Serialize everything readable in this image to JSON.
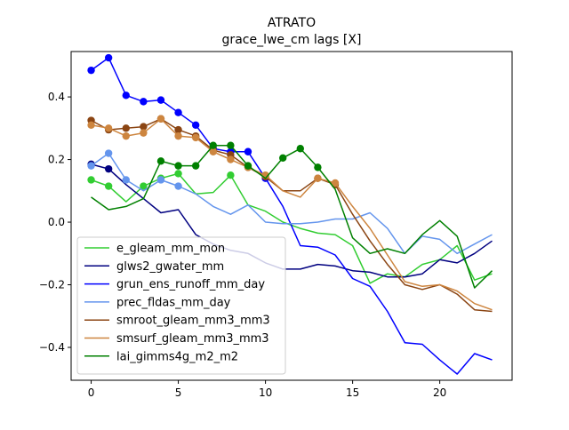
{
  "chart_data": {
    "type": "line",
    "title": "ATRATO",
    "subtitle": "grace_lwe_cm lags [X]",
    "xlabel": "",
    "ylabel": "",
    "xlim": [
      -1.15,
      24.15
    ],
    "ylim": [
      -0.505,
      0.545
    ],
    "xticks": [
      0,
      5,
      10,
      15,
      20
    ],
    "xtick_labels": [
      "0",
      "5",
      "10",
      "15",
      "20"
    ],
    "yticks": [
      -0.4,
      -0.2,
      0.0,
      0.2,
      0.4
    ],
    "ytick_labels": [
      "−0.4",
      "−0.2",
      "0.0",
      "0.2",
      "0.4"
    ],
    "grid": false,
    "legend_position": "lower-left",
    "series": [
      {
        "name": "e_gleam_mm_mon",
        "color": "#32cd32",
        "x": [
          0,
          1,
          2,
          3,
          4,
          5,
          6,
          7,
          8,
          9,
          10,
          11,
          12,
          13,
          14,
          15,
          16,
          17,
          18,
          19,
          20,
          21,
          22,
          23
        ],
        "values": [
          0.135,
          0.115,
          0.065,
          0.115,
          0.14,
          0.155,
          0.09,
          0.095,
          0.15,
          0.055,
          0.035,
          0.0,
          -0.02,
          -0.035,
          -0.04,
          -0.075,
          -0.195,
          -0.165,
          -0.175,
          -0.135,
          -0.12,
          -0.075,
          -0.185,
          -0.165
        ],
        "markers": [
          0,
          1,
          3,
          4,
          5,
          8
        ]
      },
      {
        "name": "glws2_gwater_mm",
        "color": "#000080",
        "x": [
          0,
          1,
          2,
          3,
          4,
          5,
          6,
          7,
          8,
          9,
          10,
          11,
          12,
          13,
          14,
          15,
          16,
          17,
          18,
          19,
          20,
          21,
          22,
          23
        ],
        "values": [
          0.185,
          0.17,
          0.12,
          0.075,
          0.03,
          0.04,
          -0.04,
          -0.07,
          -0.09,
          -0.1,
          -0.13,
          -0.15,
          -0.15,
          -0.135,
          -0.14,
          -0.155,
          -0.16,
          -0.175,
          -0.175,
          -0.165,
          -0.12,
          -0.13,
          -0.1,
          -0.06
        ],
        "markers": [
          0,
          1
        ]
      },
      {
        "name": "grun_ens_runoff_mm_day",
        "color": "#0000ff",
        "x": [
          0,
          1,
          2,
          3,
          4,
          5,
          6,
          7,
          8,
          9,
          10,
          11,
          12,
          13,
          14,
          15,
          16,
          17,
          18,
          19,
          20,
          21,
          22,
          23
        ],
        "values": [
          0.485,
          0.525,
          0.405,
          0.385,
          0.39,
          0.35,
          0.31,
          0.235,
          0.225,
          0.225,
          0.14,
          0.05,
          -0.075,
          -0.08,
          -0.105,
          -0.18,
          -0.205,
          -0.285,
          -0.385,
          -0.39,
          -0.44,
          -0.485,
          -0.42,
          -0.44
        ],
        "markers": [
          0,
          1,
          2,
          3,
          4,
          5,
          6,
          7,
          8,
          9,
          10
        ]
      },
      {
        "name": "prec_fldas_mm_day",
        "color": "#6495ed",
        "x": [
          0,
          1,
          2,
          3,
          4,
          5,
          6,
          7,
          8,
          9,
          10,
          11,
          12,
          13,
          14,
          15,
          16,
          17,
          18,
          19,
          20,
          21,
          22,
          23
        ],
        "values": [
          0.18,
          0.22,
          0.135,
          0.1,
          0.135,
          0.115,
          0.09,
          0.05,
          0.025,
          0.055,
          0.0,
          -0.005,
          -0.005,
          0.0,
          0.01,
          0.01,
          0.03,
          -0.02,
          -0.1,
          -0.045,
          -0.055,
          -0.1,
          -0.07,
          -0.04
        ],
        "markers": [
          0,
          1,
          2,
          4,
          5
        ]
      },
      {
        "name": "smroot_gleam_mm3_mm3",
        "color": "#8b4513",
        "x": [
          0,
          1,
          2,
          3,
          4,
          5,
          6,
          7,
          8,
          9,
          10,
          11,
          12,
          13,
          14,
          15,
          16,
          17,
          18,
          19,
          20,
          21,
          22,
          23
        ],
        "values": [
          0.325,
          0.295,
          0.3,
          0.305,
          0.33,
          0.295,
          0.275,
          0.23,
          0.215,
          0.175,
          0.145,
          0.1,
          0.1,
          0.14,
          0.12,
          0.025,
          -0.06,
          -0.135,
          -0.2,
          -0.215,
          -0.2,
          -0.23,
          -0.28,
          -0.285
        ],
        "markers": [
          0,
          1,
          2,
          3,
          4,
          5,
          6,
          7,
          8,
          9,
          10,
          13,
          14
        ]
      },
      {
        "name": "smsurf_gleam_mm3_mm3",
        "color": "#cd853f",
        "x": [
          0,
          1,
          2,
          3,
          4,
          5,
          6,
          7,
          8,
          9,
          10,
          11,
          12,
          13,
          14,
          15,
          16,
          17,
          18,
          19,
          20,
          21,
          22,
          23
        ],
        "values": [
          0.31,
          0.3,
          0.275,
          0.285,
          0.33,
          0.275,
          0.27,
          0.225,
          0.2,
          0.175,
          0.15,
          0.1,
          0.08,
          0.14,
          0.125,
          0.05,
          -0.02,
          -0.105,
          -0.19,
          -0.205,
          -0.2,
          -0.22,
          -0.26,
          -0.28
        ],
        "markers": [
          0,
          1,
          2,
          3,
          4,
          5,
          6,
          7,
          8,
          9,
          10,
          13,
          14
        ]
      },
      {
        "name": "lai_gimms4g_m2_m2",
        "color": "#008000",
        "x": [
          0,
          1,
          2,
          3,
          4,
          5,
          6,
          7,
          8,
          9,
          10,
          11,
          12,
          13,
          14,
          15,
          16,
          17,
          18,
          19,
          20,
          21,
          22,
          23
        ],
        "values": [
          0.08,
          0.04,
          0.05,
          0.075,
          0.195,
          0.18,
          0.18,
          0.245,
          0.245,
          0.18,
          0.14,
          0.205,
          0.235,
          0.175,
          0.105,
          -0.05,
          -0.1,
          -0.085,
          -0.1,
          -0.04,
          0.005,
          -0.045,
          -0.21,
          -0.155
        ],
        "markers": [
          4,
          5,
          6,
          7,
          8,
          9,
          11,
          12,
          13
        ]
      }
    ]
  }
}
